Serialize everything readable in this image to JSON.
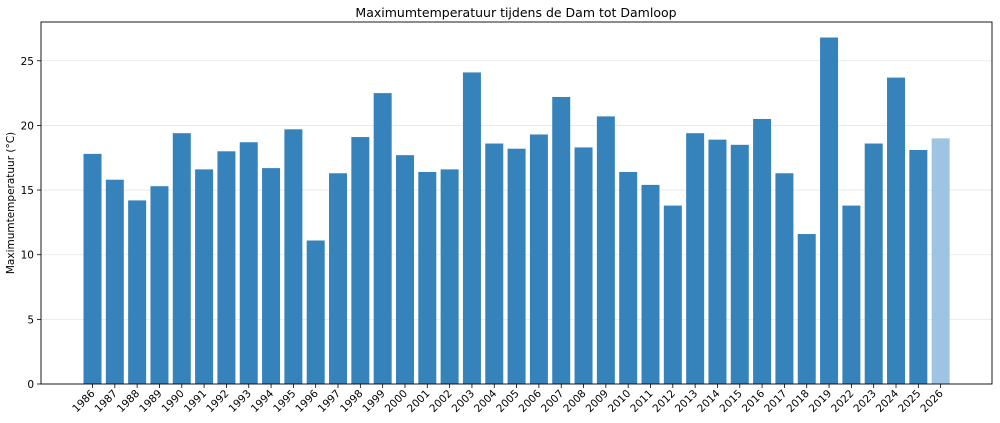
{
  "chart_data": {
    "type": "bar",
    "title": "Maximumtemperatuur tijdens de Dam tot Damloop",
    "xlabel": "",
    "ylabel": "Maximumtemperatuur (°C)",
    "ylim": [
      0,
      28
    ],
    "yticks": [
      0,
      5,
      10,
      15,
      20,
      25
    ],
    "grid": "y",
    "categories": [
      "1986",
      "1987",
      "1988",
      "1989",
      "1990",
      "1991",
      "1992",
      "1993",
      "1994",
      "1995",
      "1996",
      "1997",
      "1998",
      "1999",
      "2000",
      "2001",
      "2002",
      "2003",
      "2004",
      "2005",
      "2006",
      "2007",
      "2008",
      "2009",
      "2010",
      "2011",
      "2012",
      "2013",
      "2014",
      "2015",
      "2016",
      "2017",
      "2018",
      "2019",
      "2022",
      "2023",
      "2024",
      "2025",
      "2026"
    ],
    "values": [
      17.8,
      15.8,
      14.2,
      15.3,
      19.4,
      16.6,
      18.0,
      18.7,
      16.7,
      19.7,
      11.1,
      16.3,
      19.1,
      22.5,
      17.7,
      16.4,
      16.6,
      24.1,
      18.6,
      18.2,
      19.3,
      22.2,
      18.3,
      20.7,
      16.4,
      15.4,
      13.8,
      19.4,
      18.9,
      18.5,
      20.5,
      16.3,
      11.6,
      26.8,
      13.8,
      18.6,
      23.7,
      18.1,
      19.0
    ],
    "bar_color": "#3683bc",
    "highlight_color": "#9ec4e1",
    "highlight_index": 38
  }
}
